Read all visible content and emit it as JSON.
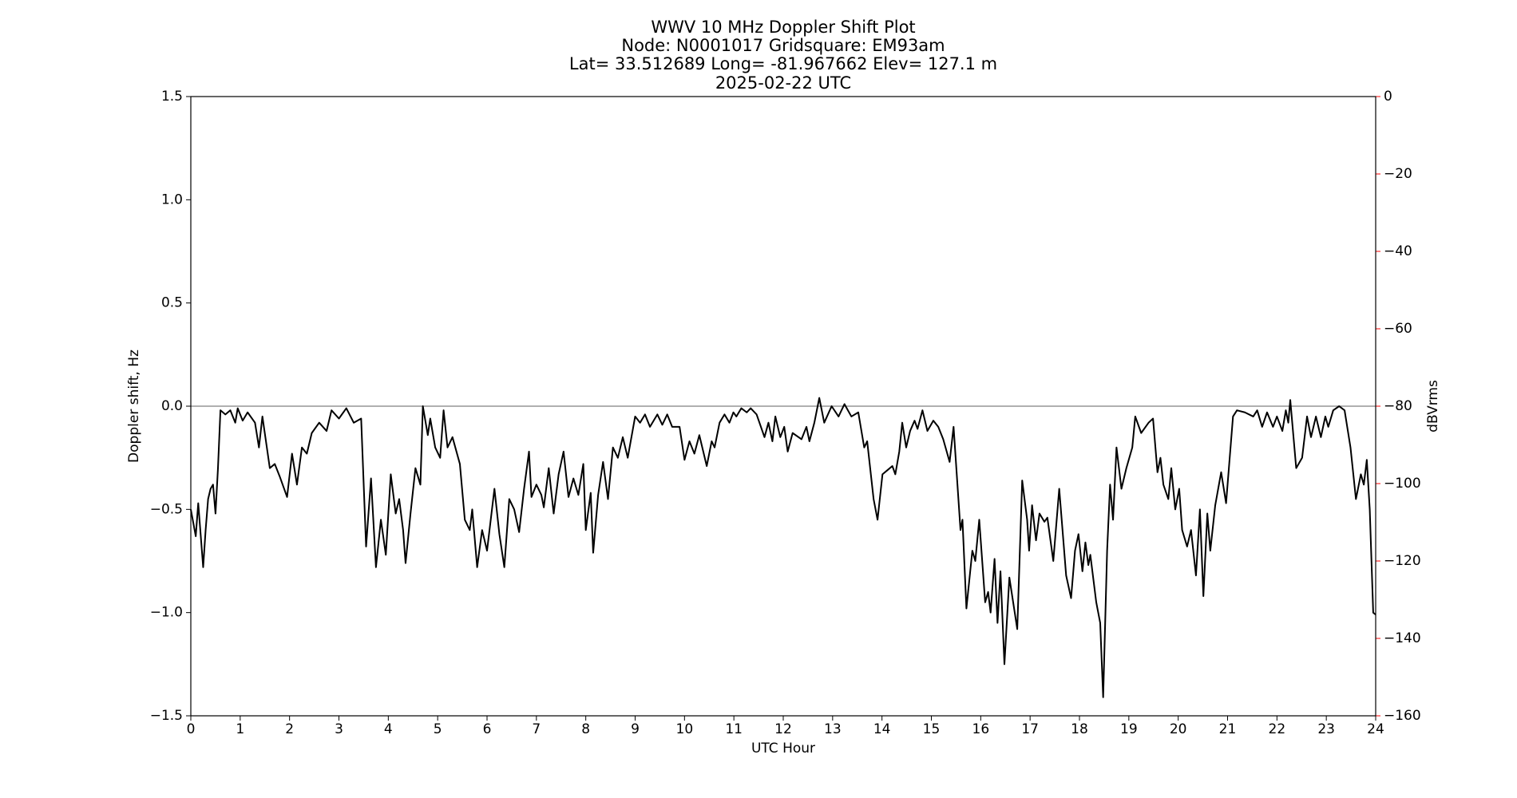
{
  "chart_data": {
    "type": "line",
    "title": [
      "WWV 10 MHz Doppler Shift Plot",
      "Node:  N0001017     Gridsquare:  EM93am",
      "Lat= 33.512689    Long= -81.967662    Elev= 127.1 m",
      "2025-02-22  UTC"
    ],
    "xlabel": "UTC Hour",
    "ylabel": "Doppler shift, Hz",
    "y2label": "dBVrms",
    "y2color": "#ff0000",
    "color": "#000000",
    "reference_line": 0,
    "reference_color": "#808080",
    "xlim": [
      0,
      24
    ],
    "xticks": [
      0,
      1,
      2,
      3,
      4,
      5,
      6,
      7,
      8,
      9,
      10,
      11,
      12,
      13,
      14,
      15,
      16,
      17,
      18,
      19,
      20,
      21,
      22,
      23,
      24
    ],
    "ylim": [
      -1.5,
      1.5
    ],
    "yticks": [
      {
        "value": -1.5,
        "label": "−1.5"
      },
      {
        "value": -1,
        "label": "−1.0"
      },
      {
        "value": -0.5,
        "label": "−0.5"
      },
      {
        "value": 0,
        "label": "0.0"
      },
      0.5,
      {
        "value": 1,
        "label": "1.0"
      },
      1.5
    ],
    "y2lim": [
      -160,
      0
    ],
    "y2ticks": [
      {
        "value": -160,
        "label": "−160"
      },
      {
        "value": -140,
        "label": "−140"
      },
      {
        "value": -120,
        "label": "−120"
      },
      {
        "value": -100,
        "label": "−100"
      },
      {
        "value": -80,
        "label": "−80"
      },
      {
        "value": -60,
        "label": "−60"
      },
      {
        "value": -40,
        "label": "−40"
      },
      {
        "value": -20,
        "label": "−20"
      },
      0
    ],
    "x": [
      0,
      0.1,
      0.15,
      0.25,
      0.3,
      0.35,
      0.4,
      0.45,
      0.5,
      0.55,
      0.6,
      0.7,
      0.8,
      0.9,
      0.95,
      1.05,
      1.15,
      1.3,
      1.38,
      1.45,
      1.6,
      1.7,
      1.8,
      1.95,
      2.05,
      2.15,
      2.25,
      2.35,
      2.45,
      2.6,
      2.75,
      2.85,
      3.0,
      3.15,
      3.3,
      3.45,
      3.55,
      3.65,
      3.75,
      3.85,
      3.95,
      4.05,
      4.15,
      4.22,
      4.3,
      4.35,
      4.45,
      4.55,
      4.65,
      4.7,
      4.8,
      4.85,
      4.95,
      5.05,
      5.12,
      5.2,
      5.3,
      5.45,
      5.55,
      5.65,
      5.7,
      5.8,
      5.9,
      6.0,
      6.15,
      6.25,
      6.35,
      6.45,
      6.55,
      6.65,
      6.75,
      6.85,
      6.9,
      7.0,
      7.1,
      7.15,
      7.25,
      7.35,
      7.45,
      7.55,
      7.65,
      7.75,
      7.85,
      7.95,
      8.0,
      8.1,
      8.15,
      8.25,
      8.35,
      8.45,
      8.55,
      8.65,
      8.75,
      8.85,
      9.0,
      9.1,
      9.2,
      9.3,
      9.45,
      9.55,
      9.65,
      9.75,
      9.9,
      10.0,
      10.1,
      10.2,
      10.3,
      10.45,
      10.55,
      10.61,
      10.71,
      10.81,
      10.91,
      10.99,
      11.05,
      11.15,
      11.26,
      11.34,
      11.46,
      11.62,
      11.7,
      11.78,
      11.84,
      11.94,
      12.02,
      12.09,
      12.19,
      12.37,
      12.47,
      12.53,
      12.63,
      12.73,
      12.83,
      12.98,
      13.12,
      13.24,
      13.38,
      13.52,
      13.64,
      13.7,
      13.83,
      13.91,
      14.01,
      14.11,
      14.21,
      14.27,
      14.35,
      14.41,
      14.49,
      14.57,
      14.66,
      14.72,
      14.82,
      14.92,
      15.04,
      15.14,
      15.24,
      15.37,
      15.45,
      15.59,
      15.63,
      15.71,
      15.83,
      15.89,
      15.97,
      16.09,
      16.15,
      16.2,
      16.28,
      16.34,
      16.4,
      16.48,
      16.58,
      16.74,
      16.84,
      16.94,
      16.98,
      17.04,
      17.12,
      17.19,
      17.29,
      17.35,
      17.47,
      17.59,
      17.73,
      17.83,
      17.91,
      17.98,
      18.06,
      18.12,
      18.18,
      18.22,
      18.34,
      18.42,
      18.48,
      18.56,
      18.62,
      18.68,
      18.75,
      18.85,
      18.95,
      19.07,
      19.13,
      19.25,
      19.4,
      19.49,
      19.58,
      19.64,
      19.7,
      19.8,
      19.86,
      19.94,
      20.02,
      20.08,
      20.18,
      20.26,
      20.36,
      20.44,
      20.51,
      20.59,
      20.65,
      20.75,
      20.87,
      20.97,
      21.11,
      21.19,
      21.35,
      21.52,
      21.6,
      21.7,
      21.8,
      21.92,
      22.0,
      22.11,
      22.18,
      22.23,
      22.27,
      22.39,
      22.51,
      22.61,
      22.69,
      22.79,
      22.89,
      22.98,
      23.04,
      23.14,
      23.26,
      23.37,
      23.49,
      23.6,
      23.7,
      23.76,
      23.82,
      23.88,
      23.95,
      24.0
    ],
    "values": [
      -0.5,
      -0.63,
      -0.47,
      -0.78,
      -0.6,
      -0.45,
      -0.4,
      -0.38,
      -0.52,
      -0.3,
      -0.02,
      -0.04,
      -0.02,
      -0.08,
      -0.01,
      -0.07,
      -0.03,
      -0.08,
      -0.2,
      -0.05,
      -0.3,
      -0.28,
      -0.34,
      -0.44,
      -0.23,
      -0.38,
      -0.2,
      -0.23,
      -0.13,
      -0.08,
      -0.12,
      -0.02,
      -0.06,
      -0.01,
      -0.08,
      -0.06,
      -0.68,
      -0.35,
      -0.78,
      -0.55,
      -0.72,
      -0.33,
      -0.52,
      -0.45,
      -0.6,
      -0.76,
      -0.52,
      -0.3,
      -0.38,
      0.0,
      -0.14,
      -0.06,
      -0.2,
      -0.25,
      -0.02,
      -0.2,
      -0.15,
      -0.28,
      -0.55,
      -0.6,
      -0.5,
      -0.78,
      -0.6,
      -0.7,
      -0.4,
      -0.62,
      -0.78,
      -0.45,
      -0.5,
      -0.61,
      -0.4,
      -0.22,
      -0.44,
      -0.38,
      -0.43,
      -0.49,
      -0.3,
      -0.52,
      -0.33,
      -0.22,
      -0.44,
      -0.35,
      -0.43,
      -0.28,
      -0.6,
      -0.42,
      -0.71,
      -0.43,
      -0.27,
      -0.45,
      -0.2,
      -0.25,
      -0.15,
      -0.25,
      -0.05,
      -0.08,
      -0.04,
      -0.1,
      -0.04,
      -0.09,
      -0.04,
      -0.1,
      -0.1,
      -0.26,
      -0.17,
      -0.23,
      -0.14,
      -0.29,
      -0.17,
      -0.2,
      -0.08,
      -0.04,
      -0.08,
      -0.03,
      -0.05,
      -0.01,
      -0.03,
      -0.01,
      -0.04,
      -0.15,
      -0.08,
      -0.17,
      -0.05,
      -0.15,
      -0.1,
      -0.22,
      -0.13,
      -0.16,
      -0.1,
      -0.17,
      -0.08,
      0.04,
      -0.08,
      0.0,
      -0.05,
      0.01,
      -0.05,
      -0.03,
      -0.2,
      -0.17,
      -0.45,
      -0.55,
      -0.33,
      -0.31,
      -0.29,
      -0.33,
      -0.22,
      -0.08,
      -0.2,
      -0.12,
      -0.07,
      -0.11,
      -0.02,
      -0.12,
      -0.07,
      -0.1,
      -0.16,
      -0.27,
      -0.1,
      -0.6,
      -0.55,
      -0.98,
      -0.7,
      -0.75,
      -0.55,
      -0.95,
      -0.9,
      -1.0,
      -0.74,
      -1.05,
      -0.8,
      -1.25,
      -0.83,
      -1.08,
      -0.36,
      -0.55,
      -0.7,
      -0.48,
      -0.65,
      -0.52,
      -0.56,
      -0.54,
      -0.75,
      -0.4,
      -0.82,
      -0.93,
      -0.7,
      -0.62,
      -0.8,
      -0.66,
      -0.77,
      -0.72,
      -0.95,
      -1.05,
      -1.41,
      -0.7,
      -0.38,
      -0.55,
      -0.2,
      -0.4,
      -0.3,
      -0.2,
      -0.05,
      -0.13,
      -0.08,
      -0.06,
      -0.32,
      -0.25,
      -0.38,
      -0.45,
      -0.3,
      -0.5,
      -0.4,
      -0.6,
      -0.68,
      -0.6,
      -0.82,
      -0.5,
      -0.92,
      -0.52,
      -0.7,
      -0.48,
      -0.32,
      -0.47,
      -0.05,
      -0.02,
      -0.03,
      -0.05,
      -0.02,
      -0.1,
      -0.03,
      -0.1,
      -0.05,
      -0.12,
      -0.02,
      -0.08,
      0.03,
      -0.3,
      -0.25,
      -0.05,
      -0.15,
      -0.05,
      -0.15,
      -0.05,
      -0.1,
      -0.02,
      0.0,
      -0.02,
      -0.2,
      -0.45,
      -0.33,
      -0.38,
      -0.26,
      -0.5,
      -1.0,
      -1.01
    ]
  }
}
